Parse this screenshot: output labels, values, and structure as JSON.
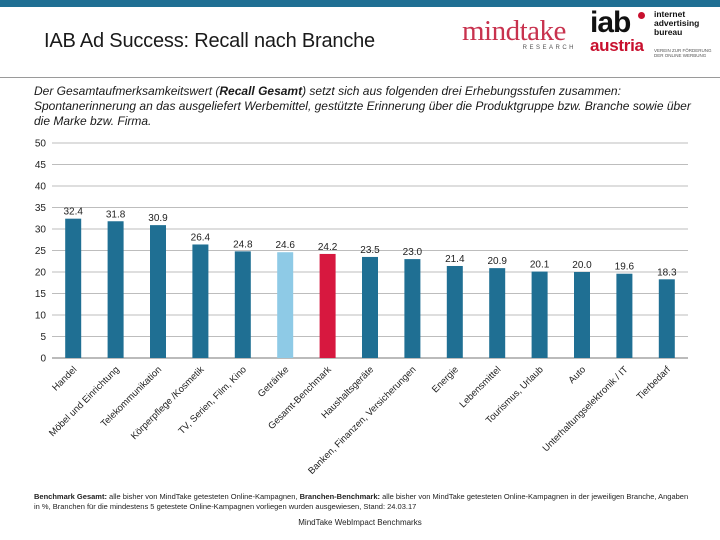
{
  "header": {
    "title": "IAB Ad Success: Recall nach Branche",
    "mindtake_logo": {
      "word": "mindtake",
      "sub": "RESEARCH"
    },
    "iab_logo": {
      "word": "iab",
      "country": "austria",
      "lines": [
        "internet",
        "advertising",
        "bureau"
      ],
      "tagline": "VEREIN ZUR FÖRDERUNG DER ONLINE WERBUNG"
    }
  },
  "intro": {
    "pre": "Der Gesamtaufmerksamkeitswert (",
    "bold": "Recall Gesamt",
    "post": ") setzt sich aus folgenden drei Erhebungsstufen zusammen: Spontanerinnerung an das ausgeliefert Werbemittel, gestützte Erinnerung über die Produktgruppe bzw. Branche sowie über die Marke bzw. Firma."
  },
  "chart_data": {
    "type": "bar",
    "categories": [
      "Handel",
      "Möbel und Einrichtung",
      "Telekommunikation",
      "Körperpflege /Kosmetik",
      "TV, Serien, Film, Kino",
      "Getränke",
      "Gesamt-Benchmark",
      "Haushaltsgeräte",
      "Banken, Finanzen, Versicherungen",
      "Energie",
      "Lebensmittel",
      "Tourismus, Urlaub",
      "Auto",
      "Unterhaltungselektronik / IT",
      "Tierbedarf"
    ],
    "values": [
      32.4,
      31.8,
      30.9,
      26.4,
      24.8,
      24.6,
      24.2,
      23.5,
      23.0,
      21.4,
      20.9,
      20.1,
      20.0,
      19.6,
      18.3
    ],
    "value_labels": [
      "32.4",
      "31.8",
      "30.9",
      "26.4",
      "24.8",
      "24.6",
      "24.2",
      "23.5",
      "23.0",
      "21.4",
      "20.9",
      "20.1",
      "20.0",
      "19.6",
      "18.3"
    ],
    "ylim": [
      0,
      50
    ],
    "yticks": [
      "0",
      "5",
      "10",
      "15",
      "20",
      "25",
      "30",
      "35",
      "40",
      "45",
      "50"
    ],
    "grid": true,
    "colors": {
      "default": "#1f6f93",
      "Getränke": "#8ecae6",
      "Gesamt-Benchmark": "#d7183f"
    },
    "title": "",
    "xlabel": "",
    "ylabel": ""
  },
  "footnote": {
    "b1": "Benchmark Gesamt:",
    "t1": " alle bisher von MindTake getesteten Online-Kampagnen, ",
    "b2": "Branchen-Benchmark:",
    "t2": " alle bisher von MindTake getesteten Online-Kampagnen in der jeweiligen Branche, Angaben in %, Branchen für die mindestens 5 getestete Online-Kampagnen vorliegen wurden ausgewiesen, Stand: 24.03.17"
  },
  "source": "MindTake WebImpact Benchmarks"
}
